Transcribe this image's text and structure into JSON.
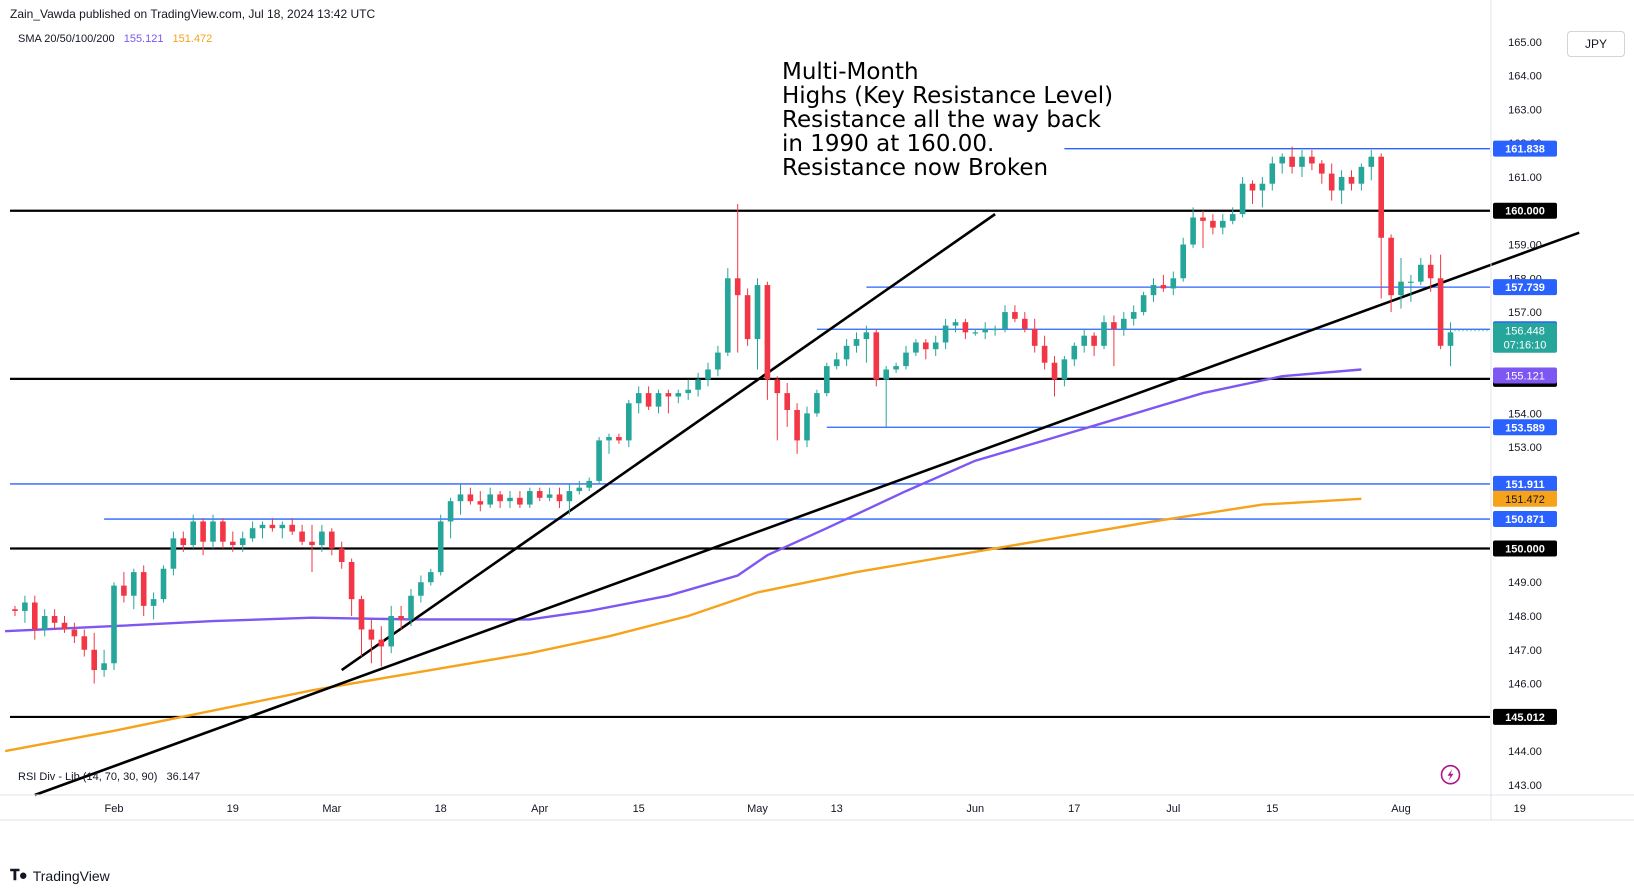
{
  "header": {
    "publisher": "Zain_Vawda published on TradingView.com, Jul 18, 2024 13:42 UTC"
  },
  "legend": {
    "sma_label": "SMA 20/50/100/200",
    "sma_value_1": "155.121",
    "sma_value_2": "151.472",
    "rsi_label": "RSI Div - Lib (14, 70, 30, 90)",
    "rsi_value": "36.147"
  },
  "currency": "JPY",
  "annotation": {
    "lines": [
      "Multi-Month",
      "Highs (Key Resistance Level)",
      "Resistance all the way back",
      "in 1990 at 160.00.",
      "Resistance now Broken"
    ]
  },
  "footer": {
    "brand": "TradingView"
  },
  "colors": {
    "up": "#26a69a",
    "down": "#f23645",
    "blue_line": "#2962ff",
    "sma_purple": "#7e57f2",
    "sma_orange": "#f7a21b",
    "black": "#000000"
  },
  "chart_data": {
    "type": "candlestick",
    "symbol_currency": "JPY",
    "ylim": [
      142.7,
      165.5
    ],
    "y_ticks": [
      "143.00",
      "144.00",
      "145.00",
      "146.00",
      "147.00",
      "148.00",
      "149.00",
      "150.00",
      "151.00",
      "152.00",
      "153.00",
      "154.00",
      "155.00",
      "156.00",
      "157.00",
      "158.00",
      "159.00",
      "160.00",
      "161.00",
      "162.00",
      "163.00",
      "164.00",
      "165.00"
    ],
    "x_ticks": [
      {
        "label": "Feb",
        "bar": 10
      },
      {
        "label": "19",
        "bar": 22
      },
      {
        "label": "Mar",
        "bar": 32
      },
      {
        "label": "18",
        "bar": 43
      },
      {
        "label": "Apr",
        "bar": 53
      },
      {
        "label": "15",
        "bar": 63
      },
      {
        "label": "May",
        "bar": 75
      },
      {
        "label": "13",
        "bar": 83
      },
      {
        "label": "Jun",
        "bar": 97
      },
      {
        "label": "17",
        "bar": 107
      },
      {
        "label": "Jul",
        "bar": 117
      },
      {
        "label": "15",
        "bar": 127
      },
      {
        "label": "Aug",
        "bar": 140
      },
      {
        "label": "19",
        "bar": 152
      }
    ],
    "candles": [
      [
        148.2,
        148.3,
        148.0,
        148.15
      ],
      [
        148.15,
        148.6,
        147.8,
        148.4
      ],
      [
        148.4,
        148.6,
        147.3,
        147.6
      ],
      [
        147.6,
        148.2,
        147.4,
        148.0
      ],
      [
        148.0,
        148.2,
        147.6,
        147.8
      ],
      [
        147.8,
        148.0,
        147.5,
        147.6
      ],
      [
        147.6,
        147.8,
        147.2,
        147.4
      ],
      [
        147.4,
        147.6,
        146.8,
        147.0
      ],
      [
        147.0,
        147.5,
        146.0,
        146.4
      ],
      [
        146.4,
        147.0,
        146.2,
        146.6
      ],
      [
        146.6,
        149.0,
        146.4,
        148.9
      ],
      [
        148.9,
        149.3,
        148.4,
        148.6
      ],
      [
        148.6,
        149.4,
        148.2,
        149.3
      ],
      [
        149.3,
        149.5,
        148.0,
        148.3
      ],
      [
        148.3,
        148.7,
        147.9,
        148.5
      ],
      [
        148.5,
        149.5,
        148.4,
        149.4
      ],
      [
        149.4,
        150.5,
        149.2,
        150.3
      ],
      [
        150.3,
        150.5,
        149.9,
        150.1
      ],
      [
        150.1,
        151.0,
        150.0,
        150.8
      ],
      [
        150.8,
        150.9,
        149.8,
        150.2
      ],
      [
        150.2,
        151.0,
        150.0,
        150.8
      ],
      [
        150.8,
        150.9,
        150.0,
        150.2
      ],
      [
        150.2,
        150.5,
        149.9,
        150.1
      ],
      [
        150.1,
        150.5,
        149.9,
        150.3
      ],
      [
        150.3,
        150.8,
        150.2,
        150.6
      ],
      [
        150.6,
        150.8,
        150.3,
        150.7
      ],
      [
        150.7,
        150.9,
        150.5,
        150.6
      ],
      [
        150.6,
        150.8,
        150.3,
        150.7
      ],
      [
        150.7,
        150.9,
        150.4,
        150.5
      ],
      [
        150.5,
        150.7,
        150.1,
        150.2
      ],
      [
        150.2,
        150.7,
        149.3,
        150.1
      ],
      [
        150.1,
        150.7,
        149.9,
        150.5
      ],
      [
        150.5,
        150.6,
        149.8,
        150.0
      ],
      [
        150.0,
        150.2,
        149.4,
        149.6
      ],
      [
        149.6,
        149.7,
        148.0,
        148.5
      ],
      [
        148.5,
        148.6,
        146.8,
        147.6
      ],
      [
        147.6,
        147.9,
        146.6,
        147.3
      ],
      [
        147.3,
        147.7,
        146.5,
        147.1
      ],
      [
        147.1,
        148.3,
        146.9,
        148.0
      ],
      [
        148.0,
        148.3,
        147.6,
        147.9
      ],
      [
        147.9,
        148.8,
        147.7,
        148.6
      ],
      [
        148.6,
        149.2,
        148.4,
        149.0
      ],
      [
        149.0,
        149.4,
        148.9,
        149.3
      ],
      [
        149.3,
        151.0,
        149.2,
        150.8
      ],
      [
        150.8,
        151.5,
        150.3,
        151.4
      ],
      [
        151.4,
        151.9,
        151.0,
        151.6
      ],
      [
        151.6,
        151.8,
        151.3,
        151.4
      ],
      [
        151.4,
        151.7,
        151.1,
        151.3
      ],
      [
        151.3,
        151.8,
        151.2,
        151.6
      ],
      [
        151.6,
        151.7,
        151.2,
        151.4
      ],
      [
        151.4,
        151.7,
        151.2,
        151.5
      ],
      [
        151.5,
        151.7,
        151.2,
        151.3
      ],
      [
        151.3,
        151.8,
        151.2,
        151.7
      ],
      [
        151.7,
        151.8,
        151.4,
        151.5
      ],
      [
        151.5,
        151.8,
        151.4,
        151.6
      ],
      [
        151.6,
        151.8,
        151.2,
        151.4
      ],
      [
        151.4,
        151.9,
        151.0,
        151.7
      ],
      [
        151.7,
        152.0,
        151.6,
        151.8
      ],
      [
        151.8,
        152.1,
        151.7,
        152.0
      ],
      [
        152.0,
        153.3,
        151.9,
        153.2
      ],
      [
        153.2,
        153.4,
        152.8,
        153.3
      ],
      [
        153.3,
        153.4,
        153.1,
        153.2
      ],
      [
        153.2,
        154.4,
        153.0,
        154.3
      ],
      [
        154.3,
        154.8,
        154.0,
        154.6
      ],
      [
        154.6,
        154.8,
        154.1,
        154.2
      ],
      [
        154.2,
        154.7,
        154.0,
        154.6
      ],
      [
        154.6,
        154.7,
        154.0,
        154.5
      ],
      [
        154.5,
        154.7,
        154.3,
        154.6
      ],
      [
        154.6,
        155.0,
        154.4,
        154.7
      ],
      [
        154.7,
        155.2,
        154.5,
        155.0
      ],
      [
        155.0,
        155.5,
        154.8,
        155.3
      ],
      [
        155.3,
        156.0,
        155.1,
        155.8
      ],
      [
        155.8,
        158.3,
        155.7,
        158.0
      ],
      [
        158.0,
        160.2,
        155.8,
        157.5
      ],
      [
        157.5,
        157.7,
        156.0,
        156.2
      ],
      [
        156.2,
        158.0,
        155.3,
        157.8
      ],
      [
        157.8,
        157.9,
        154.4,
        155.0
      ],
      [
        155.0,
        155.1,
        153.2,
        154.6
      ],
      [
        154.6,
        154.9,
        153.6,
        154.1
      ],
      [
        154.1,
        154.3,
        152.8,
        153.2
      ],
      [
        153.2,
        154.2,
        153.0,
        154.0
      ],
      [
        154.0,
        154.7,
        153.9,
        154.6
      ],
      [
        154.6,
        155.5,
        154.5,
        155.4
      ],
      [
        155.4,
        155.8,
        155.3,
        155.6
      ],
      [
        155.6,
        156.2,
        155.4,
        156.0
      ],
      [
        156.0,
        156.4,
        155.8,
        156.2
      ],
      [
        156.2,
        156.6,
        155.5,
        156.4
      ],
      [
        156.4,
        156.5,
        154.8,
        155.0
      ],
      [
        155.0,
        155.4,
        153.6,
        155.3
      ],
      [
        155.3,
        155.5,
        155.2,
        155.4
      ],
      [
        155.4,
        156.0,
        155.3,
        155.8
      ],
      [
        155.8,
        156.2,
        155.7,
        156.1
      ],
      [
        156.1,
        156.2,
        155.6,
        155.9
      ],
      [
        155.9,
        156.3,
        155.7,
        156.1
      ],
      [
        156.1,
        156.8,
        155.9,
        156.6
      ],
      [
        156.6,
        156.8,
        156.4,
        156.7
      ],
      [
        156.7,
        156.8,
        156.2,
        156.4
      ],
      [
        156.4,
        156.5,
        156.3,
        156.4
      ],
      [
        156.4,
        156.7,
        156.2,
        156.5
      ],
      [
        156.5,
        156.6,
        156.3,
        156.5
      ],
      [
        156.5,
        157.2,
        156.4,
        157.0
      ],
      [
        157.0,
        157.2,
        156.7,
        156.8
      ],
      [
        156.8,
        157.0,
        156.4,
        156.5
      ],
      [
        156.5,
        156.8,
        155.8,
        156.0
      ],
      [
        156.0,
        156.3,
        155.3,
        155.5
      ],
      [
        155.5,
        155.7,
        154.5,
        155.0
      ],
      [
        155.0,
        155.7,
        154.8,
        155.6
      ],
      [
        155.6,
        156.1,
        155.4,
        156.0
      ],
      [
        156.0,
        156.5,
        155.8,
        156.3
      ],
      [
        156.3,
        156.4,
        155.7,
        156.0
      ],
      [
        156.0,
        156.9,
        155.9,
        156.7
      ],
      [
        156.7,
        156.9,
        155.4,
        156.5
      ],
      [
        156.5,
        157.0,
        156.3,
        156.8
      ],
      [
        156.8,
        157.2,
        156.6,
        157.0
      ],
      [
        157.0,
        157.6,
        156.9,
        157.5
      ],
      [
        157.5,
        158.0,
        157.3,
        157.8
      ],
      [
        157.8,
        158.1,
        157.6,
        157.7
      ],
      [
        157.7,
        158.2,
        157.5,
        158.0
      ],
      [
        158.0,
        159.2,
        157.9,
        159.0
      ],
      [
        159.0,
        160.1,
        158.9,
        159.8
      ],
      [
        159.8,
        160.0,
        158.9,
        159.7
      ],
      [
        159.7,
        159.9,
        159.3,
        159.5
      ],
      [
        159.5,
        159.9,
        159.3,
        159.7
      ],
      [
        159.7,
        160.1,
        159.6,
        159.9
      ],
      [
        159.9,
        161.0,
        159.8,
        160.8
      ],
      [
        160.8,
        160.9,
        160.2,
        160.6
      ],
      [
        160.6,
        161.0,
        160.1,
        160.8
      ],
      [
        160.8,
        161.6,
        160.6,
        161.4
      ],
      [
        161.4,
        161.7,
        161.1,
        161.6
      ],
      [
        161.6,
        161.9,
        161.1,
        161.3
      ],
      [
        161.3,
        161.8,
        161.0,
        161.6
      ],
      [
        161.6,
        161.8,
        161.2,
        161.4
      ],
      [
        161.4,
        161.5,
        160.8,
        161.1
      ],
      [
        161.1,
        161.4,
        160.3,
        160.6
      ],
      [
        160.6,
        161.2,
        160.2,
        161.0
      ],
      [
        161.0,
        161.2,
        160.6,
        160.8
      ],
      [
        160.8,
        161.4,
        160.6,
        161.3
      ],
      [
        161.3,
        161.8,
        160.9,
        161.6
      ],
      [
        161.6,
        161.7,
        157.4,
        159.2
      ],
      [
        159.2,
        159.3,
        157.0,
        157.5
      ],
      [
        157.5,
        158.6,
        157.1,
        157.9
      ],
      [
        157.9,
        158.1,
        157.3,
        157.9
      ],
      [
        157.9,
        158.6,
        157.8,
        158.4
      ],
      [
        158.4,
        158.7,
        157.6,
        158.0
      ],
      [
        158.0,
        158.7,
        155.9,
        156.0
      ],
      [
        156.0,
        156.7,
        155.4,
        156.4
      ]
    ],
    "horizontal_levels": [
      {
        "value": 161.838,
        "label": "161.838",
        "color": "blue",
        "start_bar": 106
      },
      {
        "value": 160.0,
        "label": "160.000",
        "color": "black",
        "start_bar": 0
      },
      {
        "value": 157.739,
        "label": "157.739",
        "color": "blue",
        "start_bar": 86
      },
      {
        "value": 156.491,
        "label": "156.491",
        "color": "blue",
        "start_bar": 81
      },
      {
        "value": 155.021,
        "label": "155.021",
        "color": "black",
        "start_bar": 0
      },
      {
        "value": 153.589,
        "label": "153.589",
        "color": "blue",
        "start_bar": 82
      },
      {
        "value": 151.911,
        "label": "151.911",
        "color": "blue",
        "start_bar": 0
      },
      {
        "value": 150.871,
        "label": "150.871",
        "color": "blue",
        "start_bar": 9
      },
      {
        "value": 150.0,
        "label": "150.000",
        "color": "black",
        "start_bar": 0
      },
      {
        "value": 145.012,
        "label": "145.012",
        "color": "black",
        "start_bar": 0
      }
    ],
    "price_badges": [
      {
        "label": "156.448",
        "value": 156.448,
        "sub": "07:16:10",
        "kind": "current"
      },
      {
        "label": "155.121",
        "value": 155.121,
        "kind": "sma100"
      },
      {
        "label": "151.472",
        "value": 151.472,
        "kind": "sma200"
      }
    ],
    "trend_lines": [
      {
        "from": [
          33,
          146.4
        ],
        "to": [
          99,
          159.9
        ]
      },
      {
        "from": [
          2,
          142.7
        ],
        "to": [
          158,
          159.35
        ]
      }
    ],
    "sma_100": [
      [
        -1,
        147.55
      ],
      [
        10,
        147.7
      ],
      [
        20,
        147.85
      ],
      [
        30,
        147.95
      ],
      [
        40,
        147.9
      ],
      [
        52,
        147.9
      ],
      [
        58,
        148.15
      ],
      [
        66,
        148.6
      ],
      [
        73,
        149.2
      ],
      [
        76,
        149.8
      ],
      [
        82,
        150.6
      ],
      [
        90,
        151.7
      ],
      [
        97,
        152.6
      ],
      [
        104,
        153.2
      ],
      [
        112,
        153.9
      ],
      [
        120,
        154.6
      ],
      [
        128,
        155.1
      ],
      [
        136,
        155.3
      ]
    ],
    "sma_200": [
      [
        -1,
        144.0
      ],
      [
        10,
        144.6
      ],
      [
        20,
        145.2
      ],
      [
        30,
        145.8
      ],
      [
        40,
        146.3
      ],
      [
        52,
        146.9
      ],
      [
        60,
        147.4
      ],
      [
        68,
        148.0
      ],
      [
        75,
        148.7
      ],
      [
        85,
        149.3
      ],
      [
        95,
        149.8
      ],
      [
        105,
        150.3
      ],
      [
        115,
        150.8
      ],
      [
        126,
        151.3
      ],
      [
        136,
        151.47
      ]
    ],
    "current_price": "156.448",
    "countdown": "07:16:10"
  }
}
